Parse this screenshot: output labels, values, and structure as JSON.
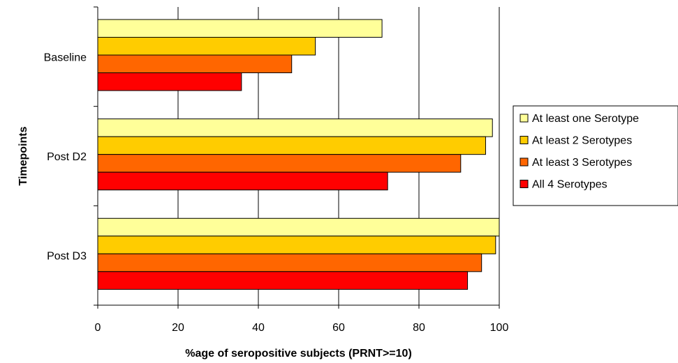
{
  "chart_data": {
    "type": "bar",
    "orientation": "horizontal",
    "title": "",
    "xlabel": "%age of seropositive subjects (PRNT>=10)",
    "ylabel": "Timepoints",
    "categories": [
      "Baseline",
      "Post D2",
      "Post D3"
    ],
    "series": [
      {
        "name": "At least one Serotype",
        "color": "#FFFF99",
        "values": [
          70.8,
          98.3,
          100
        ]
      },
      {
        "name": "At least 2 Serotypes",
        "color": "#FFCC00",
        "values": [
          54.2,
          96.6,
          99.1
        ]
      },
      {
        "name": "At least 3 Serotypes",
        "color": "#FF6600",
        "values": [
          48.3,
          90.4,
          95.6
        ]
      },
      {
        "name": "All 4 Serotypes",
        "color": "#FF0000",
        "values": [
          35.8,
          72.2,
          92.1
        ]
      }
    ],
    "xlim": [
      0,
      100
    ],
    "xticks": [
      0,
      20,
      40,
      60,
      80,
      100
    ],
    "grid": "vertical",
    "legend": "right"
  }
}
